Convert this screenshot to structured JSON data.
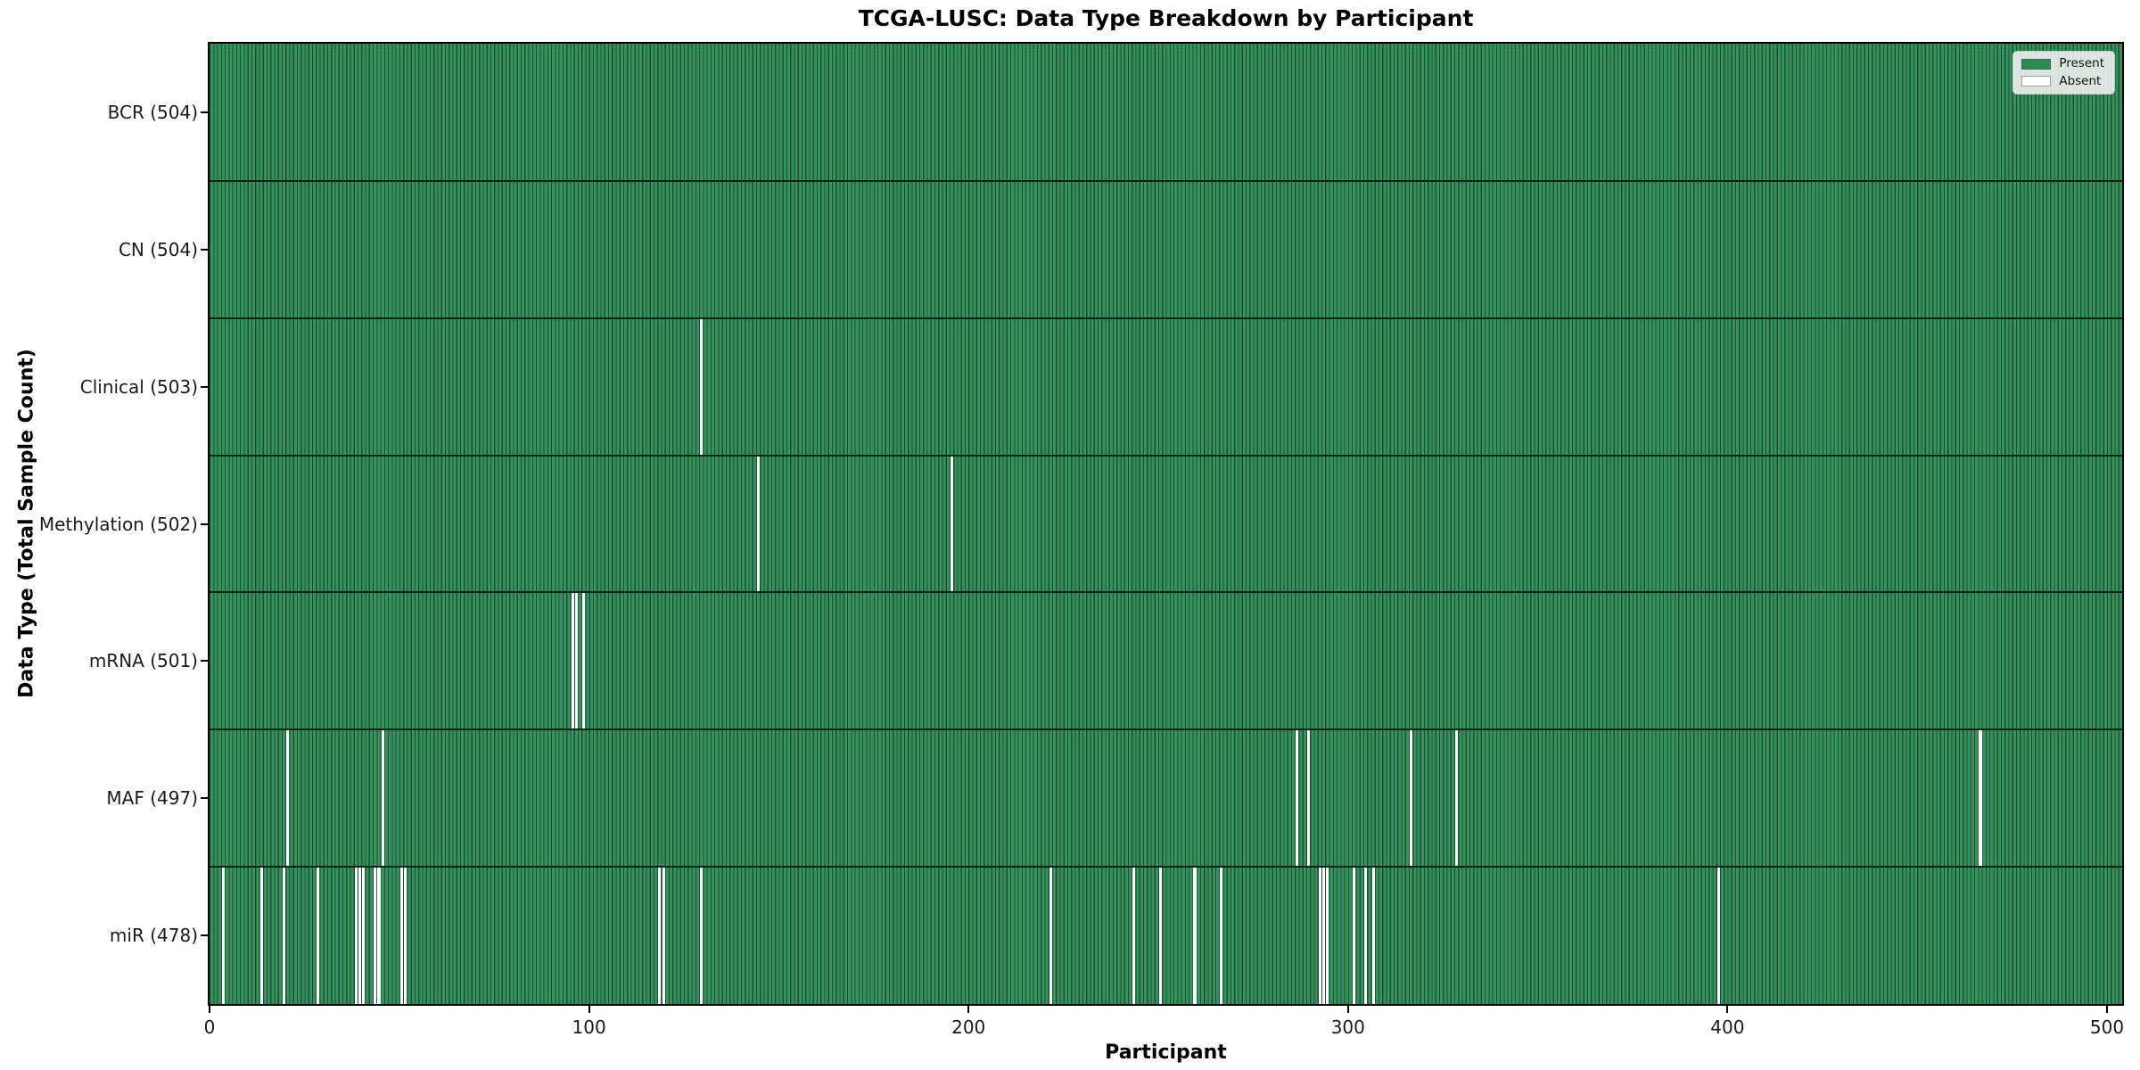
{
  "chart_data": {
    "type": "heatmap",
    "title": "TCGA-LUSC: Data Type Breakdown by Participant",
    "xlabel": "Participant",
    "ylabel": "Data Type (Total Sample Count)",
    "legend": [
      "Present",
      "Absent"
    ],
    "legend_position": "upper right",
    "grid": false,
    "x_ticks": [
      0,
      100,
      200,
      300,
      400,
      500
    ],
    "xlim": [
      0,
      504
    ],
    "total_participants": 504,
    "colors": {
      "present": "#2e8b57",
      "present_fill": "#35925e",
      "bar_edge": "#1d5033",
      "absent": "#ffffff",
      "separator": "#0d2417"
    },
    "rows": [
      {
        "label": "BCR (504)",
        "data_type": "BCR",
        "present_count": 504,
        "absent_participants": []
      },
      {
        "label": "CN (504)",
        "data_type": "CN",
        "present_count": 504,
        "absent_participants": []
      },
      {
        "label": "Clinical (503)",
        "data_type": "Clinical",
        "present_count": 503,
        "absent_participants": [
          129
        ]
      },
      {
        "label": "Methylation (502)",
        "data_type": "Methylation",
        "present_count": 502,
        "absent_participants": [
          144,
          195
        ]
      },
      {
        "label": "mRNA (501)",
        "data_type": "mRNA",
        "present_count": 501,
        "absent_participants": [
          95,
          96,
          98
        ]
      },
      {
        "label": "MAF (497)",
        "data_type": "MAF",
        "present_count": 497,
        "absent_participants": [
          20,
          45,
          286,
          289,
          316,
          328,
          466
        ]
      },
      {
        "label": "miR (478)",
        "data_type": "miR",
        "present_count": 478,
        "absent_participants": [
          3,
          13,
          19,
          28,
          38,
          39,
          40,
          43,
          44,
          50,
          51,
          118,
          119,
          129,
          221,
          243,
          250,
          259,
          266,
          292,
          293,
          294,
          301,
          304,
          306,
          397
        ]
      }
    ]
  }
}
